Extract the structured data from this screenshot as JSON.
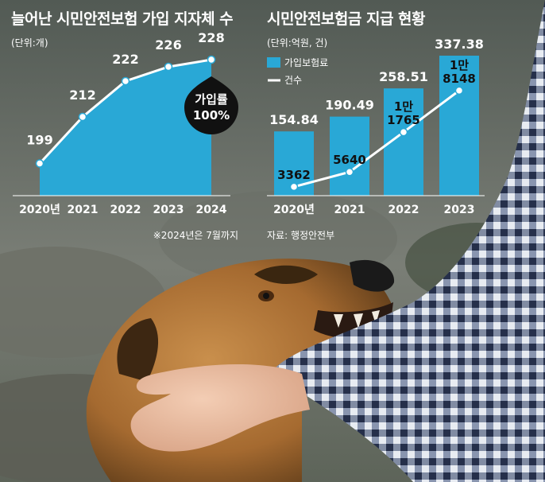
{
  "left_chart": {
    "title": "늘어난 시민안전보험 가입 지자체 수",
    "unit": "(단위:개)",
    "badge_line1": "가입률",
    "badge_line2": "100%",
    "note": "※2024년은 7월까지"
  },
  "right_chart": {
    "title": "시민안전보험금 지급 현황",
    "unit": "(단위:억원, 건)",
    "source": "자료: 행정안전부"
  },
  "chart_data": [
    {
      "type": "area",
      "title": "늘어난 시민안전보험 가입 지자체 수",
      "unit": "(단위:개)",
      "categories": [
        "2020년",
        "2021",
        "2022",
        "2023",
        "2024"
      ],
      "values": [
        199,
        212,
        222,
        226,
        228
      ],
      "value_labels": [
        "199",
        "212",
        "222",
        "226",
        "228"
      ],
      "ylim": [
        190,
        230
      ],
      "grid": false,
      "color": "#29a8d6",
      "annotation": "가입률 100%",
      "note": "※2024년은 7월까지"
    },
    {
      "type": "bar",
      "title": "시민안전보험금 지급 현황",
      "unit": "(단위:억원, 건)",
      "categories": [
        "2020년",
        "2021",
        "2022",
        "2023"
      ],
      "legend_position": "top-left",
      "grid": false,
      "series": [
        {
          "name": "가입보험료",
          "type": "bar",
          "color": "#29a8d6",
          "values": [
            154.84,
            190.49,
            258.51,
            337.38
          ],
          "labels": [
            "154.84",
            "190.49",
            "258.51",
            "337.38"
          ],
          "ylim": [
            0,
            345
          ]
        },
        {
          "name": "건수",
          "type": "line",
          "color": "#ffffff",
          "values": [
            3362,
            5640,
            11765,
            18148
          ],
          "labels": [
            [
              "3362"
            ],
            [
              "5640"
            ],
            [
              "1만",
              "1765"
            ],
            [
              "1만",
              "8148"
            ]
          ],
          "ylim": [
            2000,
            24000
          ]
        }
      ],
      "source": "자료: 행정안전부"
    }
  ]
}
